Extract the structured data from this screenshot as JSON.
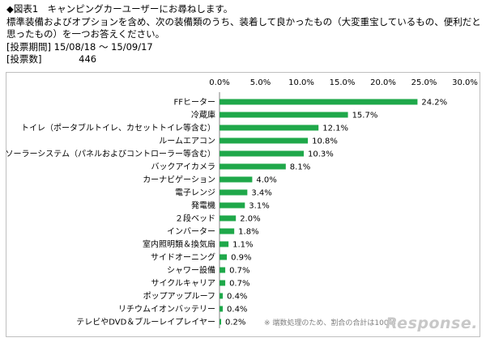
{
  "header": {
    "title": "◆図表1　キャンピングカーユーザーにお尋ねします。",
    "question": "標準装備およびオプションを含め、次の装備類のうち、装着して良かったもの（大変重宝しているもの、便利だと思ったもの）を一つお答えください。",
    "period_label": "[投票期間]",
    "period_value": "15/08/18 ～ 15/09/17",
    "count_label": "[投票数]",
    "count_value": "446"
  },
  "chart_data": {
    "type": "bar",
    "orientation": "horizontal",
    "categories": [
      "FFヒーター",
      "冷蔵庫",
      "トイレ（ポータブルトイレ、カセットトイレ等含む）",
      "ルームエアコン",
      "ソーラーシステム（パネルおよびコントローラー等含む）",
      "バックアイカメラ",
      "カーナビゲーション",
      "電子レンジ",
      "発電機",
      "２段ベッド",
      "インバーター",
      "室内照明類＆換気扇",
      "サイドオーニング",
      "シャワー設備",
      "サイクルキャリア",
      "ポップアップルーフ",
      "リチウムイオンバッテリー",
      "テレビやDVD＆ブルーレイプレイヤー"
    ],
    "values": [
      24.2,
      15.7,
      12.1,
      10.8,
      10.3,
      8.1,
      4.0,
      3.4,
      3.1,
      2.0,
      1.8,
      1.1,
      0.9,
      0.7,
      0.7,
      0.4,
      0.4,
      0.2
    ],
    "value_labels": [
      "24.2%",
      "15.7%",
      "12.1%",
      "10.8%",
      "10.3%",
      "8.1%",
      "4.0%",
      "3.4%",
      "3.1%",
      "2.0%",
      "1.8%",
      "1.1%",
      "0.9%",
      "0.7%",
      "0.7%",
      "0.4%",
      "0.4%",
      "0.2%"
    ],
    "xlim": [
      0,
      30
    ],
    "xticks": [
      "0.0%",
      "5.0%",
      "10.0%",
      "15.0%",
      "20.0%",
      "25.0%",
      "30.0%"
    ],
    "axis_position": "top",
    "grid": false,
    "bar_color": "#1fa84a",
    "footnote": "※ 端数処理のため、割合の合計は100％"
  },
  "watermark": "Response."
}
